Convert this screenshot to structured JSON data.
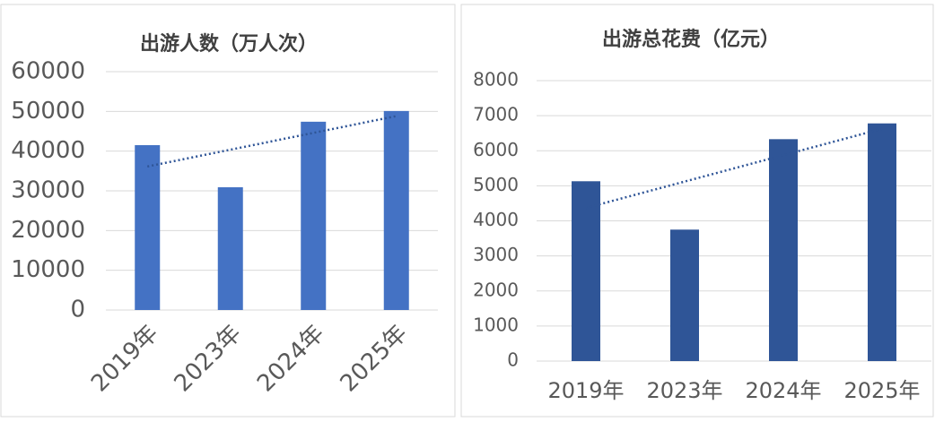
{
  "chart_data": [
    {
      "type": "bar",
      "title": "出游人数（万人次）",
      "categories": [
        "2019年",
        "2023年",
        "2024年",
        "2025年"
      ],
      "values": [
        41500,
        30900,
        47400,
        50100
      ],
      "color": "#4472c4",
      "ylim": [
        0,
        60000
      ],
      "yticks": [
        0,
        10000,
        20000,
        30000,
        40000,
        50000,
        60000
      ],
      "grid": true,
      "trendline": "linear",
      "trendline_color": "#2f5597"
    },
    {
      "type": "bar",
      "title": "出游总花费（亿元）",
      "categories": [
        "2019年",
        "2023年",
        "2024年",
        "2025年"
      ],
      "values": [
        5130,
        3750,
        6330,
        6780
      ],
      "color": "#2f5597",
      "ylim": [
        0,
        8000
      ],
      "yticks": [
        0,
        1000,
        2000,
        3000,
        4000,
        5000,
        6000,
        7000,
        8000
      ],
      "grid": true,
      "trendline": "linear",
      "trendline_color": "#2f5597"
    }
  ]
}
